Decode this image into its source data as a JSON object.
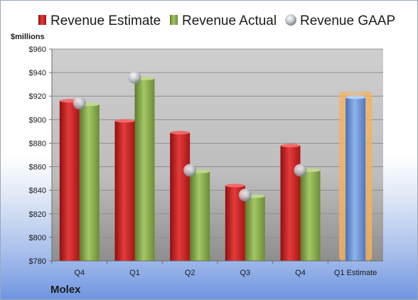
{
  "chart_data": {
    "type": "bar",
    "categories": [
      "Q4",
      "Q1",
      "Q2",
      "Q3",
      "Q4",
      "Q1 Estimate"
    ],
    "series": [
      {
        "name": "Revenue Estimate",
        "values": [
          916,
          899,
          889,
          844,
          878,
          null
        ]
      },
      {
        "name": "Revenue Actual",
        "values": [
          913,
          935,
          856,
          835,
          857,
          919
        ]
      },
      {
        "name": "Revenue GAAP",
        "values": [
          914,
          936,
          857,
          836,
          857,
          null
        ]
      }
    ],
    "ylabel": "$millions",
    "ylim": [
      780,
      960
    ],
    "yticks": [
      780,
      800,
      820,
      840,
      860,
      880,
      900,
      920,
      940,
      960
    ],
    "ytick_labels": [
      "$780",
      "$800",
      "$820",
      "$840",
      "$860",
      "$880",
      "$900",
      "$920",
      "$940",
      "$960"
    ],
    "grid": true,
    "legend_position": "top",
    "highlight_category": "Q1 Estimate",
    "colors": {
      "estimate": "#d42020",
      "actual": "#8db04e",
      "gaap": "#b8bcc4",
      "forecast": "#6f9ad8",
      "highlight": "#f7b15a",
      "plot_bg": "#c9c9c9"
    },
    "company": "Molex"
  }
}
